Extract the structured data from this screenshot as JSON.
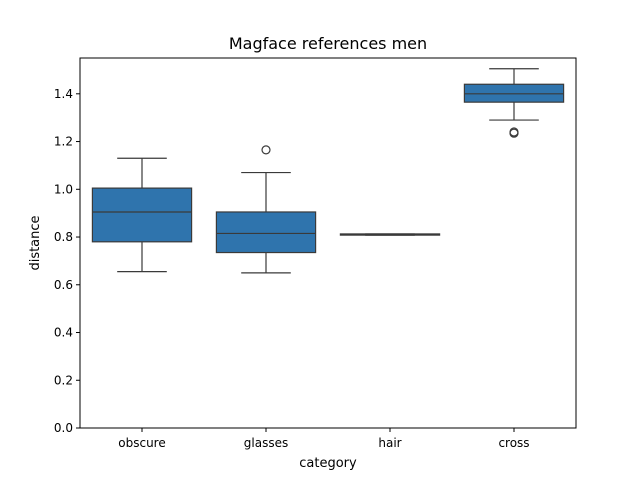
{
  "chart_data": {
    "type": "box",
    "title": "Magface references men",
    "xlabel": "category",
    "ylabel": "distance",
    "categories": [
      "obscure",
      "glasses",
      "hair",
      "cross"
    ],
    "ylim": [
      0.0,
      1.55
    ],
    "yticks": [
      0.0,
      0.2,
      0.4,
      0.6,
      0.8,
      1.0,
      1.2,
      1.4
    ],
    "ytick_labels": [
      "0.0",
      "0.2",
      "0.4",
      "0.6",
      "0.8",
      "1.0",
      "1.2",
      "1.4"
    ],
    "box_color": "#2f74ad",
    "boxes": [
      {
        "category": "obscure",
        "whisker_low": 0.655,
        "q1": 0.78,
        "median": 0.905,
        "q3": 1.005,
        "whisker_high": 1.13,
        "outliers": []
      },
      {
        "category": "glasses",
        "whisker_low": 0.65,
        "q1": 0.735,
        "median": 0.815,
        "q3": 0.905,
        "whisker_high": 1.07,
        "outliers": [
          1.165
        ]
      },
      {
        "category": "hair",
        "whisker_low": 0.808,
        "q1": 0.808,
        "median": 0.81,
        "q3": 0.813,
        "whisker_high": 0.813,
        "outliers": []
      },
      {
        "category": "cross",
        "whisker_low": 1.29,
        "q1": 1.365,
        "median": 1.4,
        "q3": 1.44,
        "whisker_high": 1.505,
        "outliers": [
          1.235,
          1.24
        ]
      }
    ]
  }
}
